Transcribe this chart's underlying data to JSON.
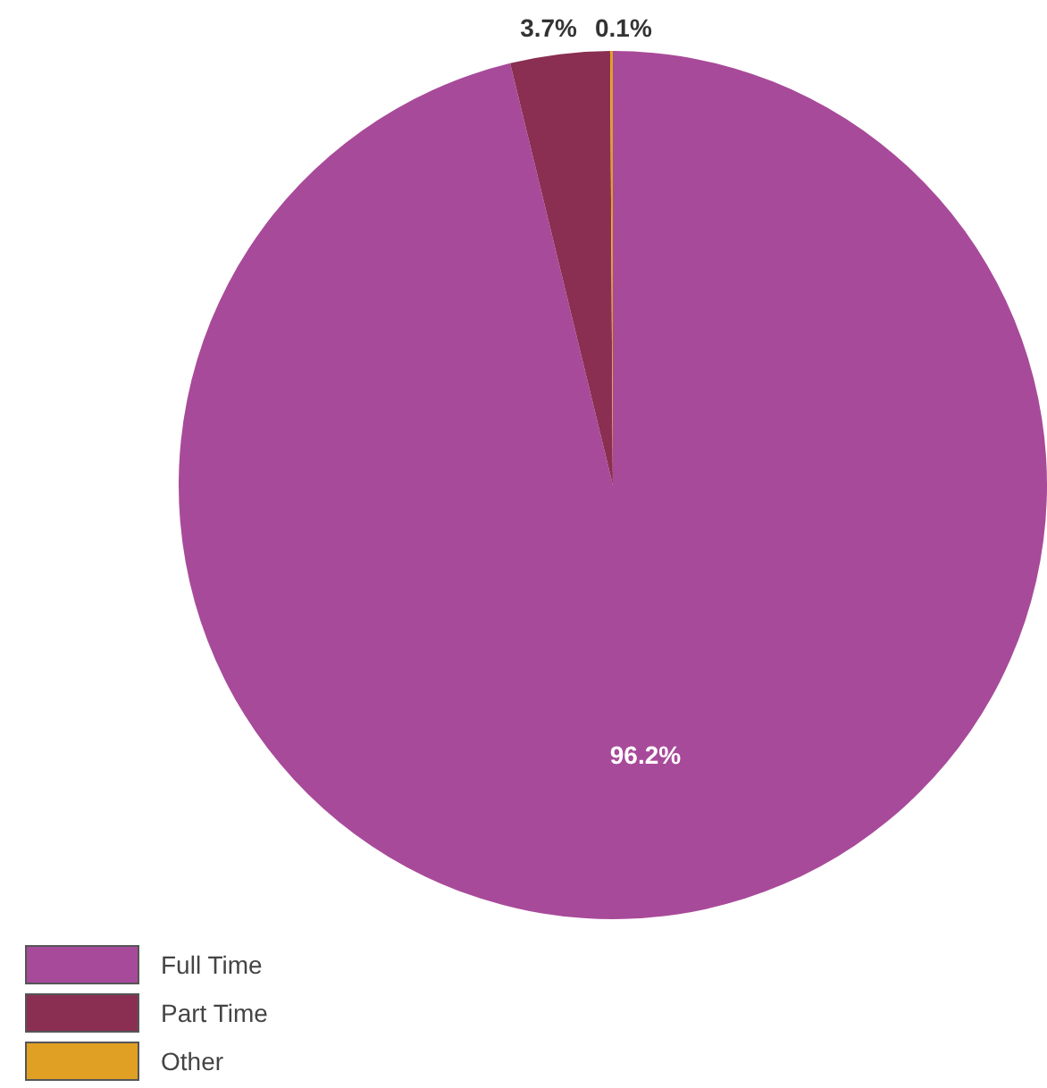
{
  "chart_data": {
    "type": "pie",
    "categories": [
      "Full Time",
      "Part Time",
      "Other"
    ],
    "values": [
      96.2,
      3.7,
      0.1
    ],
    "colors": [
      "#a84a9a",
      "#8a2f52",
      "#e0a024"
    ],
    "value_labels": [
      "96.2%",
      "3.7%",
      "0.1%"
    ],
    "legend": "bottom left"
  }
}
